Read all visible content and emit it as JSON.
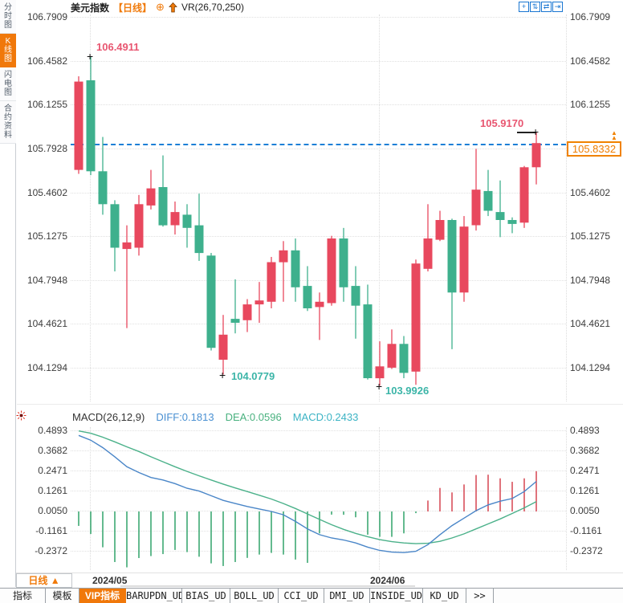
{
  "header": {
    "symbol": "美元指数",
    "period": "【日线】",
    "plus_icon": "⊕",
    "indicator": "VR(26,70,250)"
  },
  "toolbar": {
    "icons": [
      {
        "name": "crosshair-icon",
        "glyph": "+"
      },
      {
        "name": "scale-up-icon",
        "glyph": "⇅"
      },
      {
        "name": "scale-fit-icon",
        "glyph": "⇄"
      },
      {
        "name": "pan-right-icon",
        "glyph": "⇥"
      }
    ]
  },
  "sidebar": {
    "items": [
      {
        "label": "分时图",
        "active": false
      },
      {
        "label": "K线图",
        "active": true
      },
      {
        "label": "闪电图",
        "active": false
      },
      {
        "label": "合约资料",
        "active": false
      }
    ]
  },
  "price_axis_labels": [
    "106.7909",
    "106.4582",
    "106.1255",
    "105.7928",
    "105.4602",
    "105.1275",
    "104.7948",
    "104.4621",
    "104.1294"
  ],
  "macd_axis_labels": [
    "0.4893",
    "0.3682",
    "0.2471",
    "0.1261",
    "0.0050",
    "-0.1161",
    "-0.2372"
  ],
  "macd_header": {
    "title": "MACD(26,12,9)",
    "diff": "DIFF:0.1813",
    "dea": "DEA:0.0596",
    "macd": "MACD:0.2433"
  },
  "annotations": {
    "high": "106.4911",
    "low_may": "104.0779",
    "low_jun": "103.9926",
    "swing_high": "105.9170",
    "last_price": "105.8332",
    "price_arrows": "▲▲"
  },
  "xaxis": {
    "period": "日线 ▲",
    "dates": [
      "2024/05",
      "2024/06"
    ]
  },
  "bottom_tabs": [
    {
      "label": "指标",
      "active": false,
      "cn": true
    },
    {
      "label": "模板",
      "active": false,
      "cn": true
    },
    {
      "label": "VIP指标",
      "active": true,
      "cn": true
    },
    {
      "label": "BARUPDN_UD",
      "active": false,
      "cn": false
    },
    {
      "label": "BIAS_UD",
      "active": false,
      "cn": false
    },
    {
      "label": "BOLL_UD",
      "active": false,
      "cn": false
    },
    {
      "label": "CCI_UD",
      "active": false,
      "cn": false
    },
    {
      "label": "DMI_UD",
      "active": false,
      "cn": false
    },
    {
      "label": "INSIDE_UD",
      "active": false,
      "cn": false
    },
    {
      "label": "KD_UD",
      "active": false,
      "cn": false
    },
    {
      "label": ">>",
      "active": false,
      "cn": false
    }
  ],
  "colors": {
    "up": "#e8485e",
    "down": "#3eb08d",
    "hist_up": "#d9505c",
    "hist_down": "#3da873",
    "diff_line": "#4a86c8",
    "dea_line": "#4bb18a",
    "accent_orange": "#f0780a",
    "dashed_blue": "#1c7fd6",
    "toolbar_blue": "#1976d2",
    "annotation_red": "#e85570",
    "annotation_teal": "#3cb5a8"
  },
  "chart_data": {
    "type": "candlestick+macd",
    "title": "美元指数",
    "interval": "日线",
    "x_date_marks": [
      {
        "label": "2024/05",
        "index": 1
      },
      {
        "label": "2024/06",
        "index": 25
      }
    ],
    "price_ticks": [
      106.7909,
      106.4582,
      106.1255,
      105.7928,
      105.4602,
      105.1275,
      104.7948,
      104.4621,
      104.1294
    ],
    "last_price": 105.8332,
    "high_annotation": 106.4911,
    "swing_high_annotation": 105.917,
    "low_annotations": [
      104.0779,
      103.9926
    ],
    "candles": [
      {
        "o": 105.63,
        "h": 106.34,
        "l": 105.6,
        "c": 106.3
      },
      {
        "o": 106.31,
        "h": 106.4911,
        "l": 105.59,
        "c": 105.62
      },
      {
        "o": 105.62,
        "h": 105.88,
        "l": 105.29,
        "c": 105.37
      },
      {
        "o": 105.37,
        "h": 105.4,
        "l": 104.86,
        "c": 105.04
      },
      {
        "o": 105.03,
        "h": 105.21,
        "l": 104.43,
        "c": 105.08
      },
      {
        "o": 105.04,
        "h": 105.44,
        "l": 104.98,
        "c": 105.37
      },
      {
        "o": 105.36,
        "h": 105.63,
        "l": 105.33,
        "c": 105.49
      },
      {
        "o": 105.5,
        "h": 105.74,
        "l": 105.2,
        "c": 105.21
      },
      {
        "o": 105.21,
        "h": 105.39,
        "l": 105.14,
        "c": 105.31
      },
      {
        "o": 105.29,
        "h": 105.37,
        "l": 105.04,
        "c": 105.19
      },
      {
        "o": 105.21,
        "h": 105.45,
        "l": 104.94,
        "c": 105.0
      },
      {
        "o": 104.98,
        "h": 105.0,
        "l": 104.26,
        "c": 104.28
      },
      {
        "o": 104.19,
        "h": 104.53,
        "l": 104.0779,
        "c": 104.38
      },
      {
        "o": 104.5,
        "h": 104.8,
        "l": 104.39,
        "c": 104.47
      },
      {
        "o": 104.49,
        "h": 104.65,
        "l": 104.4,
        "c": 104.61
      },
      {
        "o": 104.61,
        "h": 104.78,
        "l": 104.47,
        "c": 104.64
      },
      {
        "o": 104.63,
        "h": 104.97,
        "l": 104.58,
        "c": 104.93
      },
      {
        "o": 104.93,
        "h": 105.09,
        "l": 104.63,
        "c": 105.02
      },
      {
        "o": 105.02,
        "h": 105.11,
        "l": 104.63,
        "c": 104.74
      },
      {
        "o": 104.75,
        "h": 104.9,
        "l": 104.56,
        "c": 104.58
      },
      {
        "o": 104.59,
        "h": 104.7,
        "l": 104.34,
        "c": 104.63
      },
      {
        "o": 104.62,
        "h": 105.13,
        "l": 104.6,
        "c": 105.11
      },
      {
        "o": 105.11,
        "h": 105.19,
        "l": 104.63,
        "c": 104.74
      },
      {
        "o": 104.75,
        "h": 104.9,
        "l": 104.35,
        "c": 104.6
      },
      {
        "o": 104.61,
        "h": 104.76,
        "l": 104.04,
        "c": 104.05
      },
      {
        "o": 104.05,
        "h": 104.33,
        "l": 103.9926,
        "c": 104.14
      },
      {
        "o": 104.13,
        "h": 104.42,
        "l": 104.12,
        "c": 104.31
      },
      {
        "o": 104.31,
        "h": 104.37,
        "l": 104.05,
        "c": 104.09
      },
      {
        "o": 104.1,
        "h": 104.95,
        "l": 104.0,
        "c": 104.92
      },
      {
        "o": 104.88,
        "h": 105.37,
        "l": 104.86,
        "c": 105.11
      },
      {
        "o": 105.1,
        "h": 105.32,
        "l": 105.09,
        "c": 105.25
      },
      {
        "o": 105.25,
        "h": 105.26,
        "l": 104.27,
        "c": 104.7
      },
      {
        "o": 104.7,
        "h": 105.28,
        "l": 104.63,
        "c": 105.2
      },
      {
        "o": 105.21,
        "h": 105.79,
        "l": 105.17,
        "c": 105.48
      },
      {
        "o": 105.47,
        "h": 105.63,
        "l": 105.28,
        "c": 105.32
      },
      {
        "o": 105.31,
        "h": 105.55,
        "l": 105.12,
        "c": 105.25
      },
      {
        "o": 105.25,
        "h": 105.27,
        "l": 105.15,
        "c": 105.22
      },
      {
        "o": 105.23,
        "h": 105.66,
        "l": 105.19,
        "c": 105.65
      },
      {
        "o": 105.65,
        "h": 105.917,
        "l": 105.52,
        "c": 105.8332
      }
    ],
    "macd": {
      "params": [
        26,
        12,
        9
      ],
      "diff_last": 0.1813,
      "dea_last": 0.0596,
      "macd_last": 0.2433,
      "ticks": [
        0.4893,
        0.3682,
        0.2471,
        0.1261,
        0.005,
        -0.1161,
        -0.2372
      ],
      "diff": [
        0.459,
        0.43,
        0.385,
        0.33,
        0.27,
        0.235,
        0.205,
        0.19,
        0.168,
        0.14,
        0.123,
        0.095,
        0.067,
        0.048,
        0.03,
        0.015,
        0.0,
        -0.02,
        -0.06,
        -0.105,
        -0.14,
        -0.16,
        -0.172,
        -0.19,
        -0.215,
        -0.235,
        -0.245,
        -0.248,
        -0.24,
        -0.2,
        -0.14,
        -0.085,
        -0.04,
        0.005,
        0.04,
        0.062,
        0.078,
        0.12,
        0.1813
      ],
      "dea": [
        0.486,
        0.472,
        0.448,
        0.42,
        0.39,
        0.362,
        0.33,
        0.3,
        0.27,
        0.242,
        0.215,
        0.19,
        0.165,
        0.142,
        0.12,
        0.098,
        0.075,
        0.048,
        0.018,
        -0.015,
        -0.048,
        -0.08,
        -0.108,
        -0.132,
        -0.152,
        -0.17,
        -0.182,
        -0.19,
        -0.194,
        -0.192,
        -0.18,
        -0.16,
        -0.135,
        -0.105,
        -0.075,
        -0.045,
        -0.012,
        0.022,
        0.0596
      ],
      "hist": [
        -0.087,
        -0.136,
        -0.216,
        -0.305,
        -0.337,
        -0.281,
        -0.269,
        -0.257,
        -0.232,
        -0.245,
        -0.273,
        -0.313,
        -0.329,
        -0.305,
        -0.28,
        -0.26,
        -0.25,
        -0.26,
        -0.29,
        -0.31,
        -0.132,
        -0.019,
        -0.02,
        -0.035,
        -0.14,
        -0.153,
        -0.153,
        -0.132,
        -0.01,
        0.066,
        0.142,
        0.115,
        0.163,
        0.22,
        0.222,
        0.2,
        0.179,
        0.2,
        0.243
      ]
    }
  }
}
